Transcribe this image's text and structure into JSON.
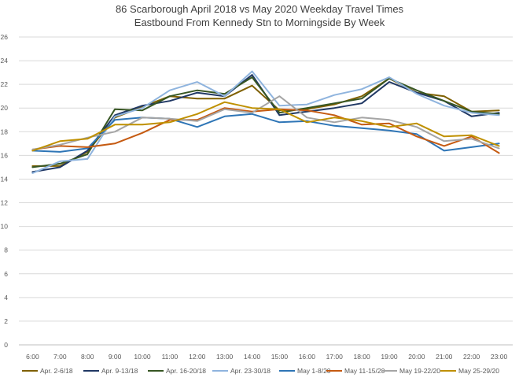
{
  "chart_data": {
    "type": "line",
    "title": "86 Scarborough April 2018 vs May 2020 Weekday Travel Times",
    "subtitle": "Eastbound From Kennedy Stn to Morningside By Week",
    "xlabel": "",
    "ylabel": "",
    "ylim": [
      0,
      26
    ],
    "yticks": [
      0,
      2,
      4,
      6,
      8,
      10,
      12,
      14,
      16,
      18,
      20,
      22,
      24,
      26
    ],
    "grid": true,
    "legend_position": "bottom",
    "categories": [
      "6:00",
      "7:00",
      "8:00",
      "9:00",
      "10:00",
      "11:00",
      "12:00",
      "13:00",
      "14:00",
      "15:00",
      "16:00",
      "17:00",
      "18:00",
      "19:00",
      "20:00",
      "21:00",
      "22:00",
      "23:00"
    ],
    "series": [
      {
        "name": "Apr. 2-6/18",
        "color": "#7f6000",
        "values": [
          15.1,
          15.1,
          16.3,
          19.2,
          20.1,
          21.0,
          20.8,
          20.8,
          21.9,
          19.8,
          19.9,
          20.3,
          21.0,
          22.5,
          21.3,
          21.0,
          19.7,
          19.8
        ]
      },
      {
        "name": "Apr. 9-13/18",
        "color": "#203864",
        "values": [
          14.6,
          15.0,
          16.4,
          19.4,
          20.2,
          20.6,
          21.3,
          21.0,
          22.8,
          19.4,
          19.7,
          20.0,
          20.4,
          22.2,
          21.3,
          20.6,
          19.3,
          19.6
        ]
      },
      {
        "name": "Apr. 16-20/18",
        "color": "#375623",
        "values": [
          15.0,
          15.3,
          16.1,
          19.9,
          19.8,
          21.0,
          21.5,
          21.2,
          22.6,
          19.6,
          20.0,
          20.4,
          20.8,
          22.5,
          21.5,
          20.6,
          19.7,
          19.5
        ]
      },
      {
        "name": "Apr. 23-30/18",
        "color": "#8fb4de",
        "values": [
          14.5,
          15.5,
          15.7,
          19.3,
          20.0,
          21.5,
          22.2,
          21.0,
          23.1,
          20.2,
          20.3,
          21.1,
          21.6,
          22.6,
          21.2,
          20.2,
          19.6,
          19.4
        ]
      },
      {
        "name": "May 1-8/20",
        "color": "#2e75b6",
        "values": [
          16.4,
          16.3,
          16.6,
          19.0,
          19.2,
          19.1,
          18.4,
          19.3,
          19.5,
          18.8,
          18.9,
          18.5,
          18.3,
          18.1,
          17.8,
          16.4,
          16.7,
          17.0
        ]
      },
      {
        "name": "May 11-15/20",
        "color": "#c55a11",
        "values": [
          16.5,
          16.8,
          16.7,
          17.0,
          17.9,
          19.0,
          19.0,
          20.0,
          19.7,
          19.9,
          19.8,
          19.4,
          18.6,
          18.7,
          17.6,
          16.8,
          17.6,
          16.2
        ]
      },
      {
        "name": "May 19-22/20",
        "color": "#a5a5a5",
        "values": [
          16.5,
          16.9,
          17.5,
          18.0,
          19.2,
          19.1,
          18.9,
          19.9,
          19.6,
          21.0,
          19.2,
          18.8,
          19.2,
          19.0,
          18.4,
          17.2,
          17.4,
          16.6
        ]
      },
      {
        "name": "May 25-29/20",
        "color": "#bf9000",
        "values": [
          16.4,
          17.2,
          17.4,
          18.6,
          18.6,
          18.8,
          19.5,
          20.5,
          20.0,
          19.9,
          18.8,
          19.2,
          18.9,
          18.4,
          18.7,
          17.6,
          17.7,
          16.8
        ]
      }
    ]
  }
}
